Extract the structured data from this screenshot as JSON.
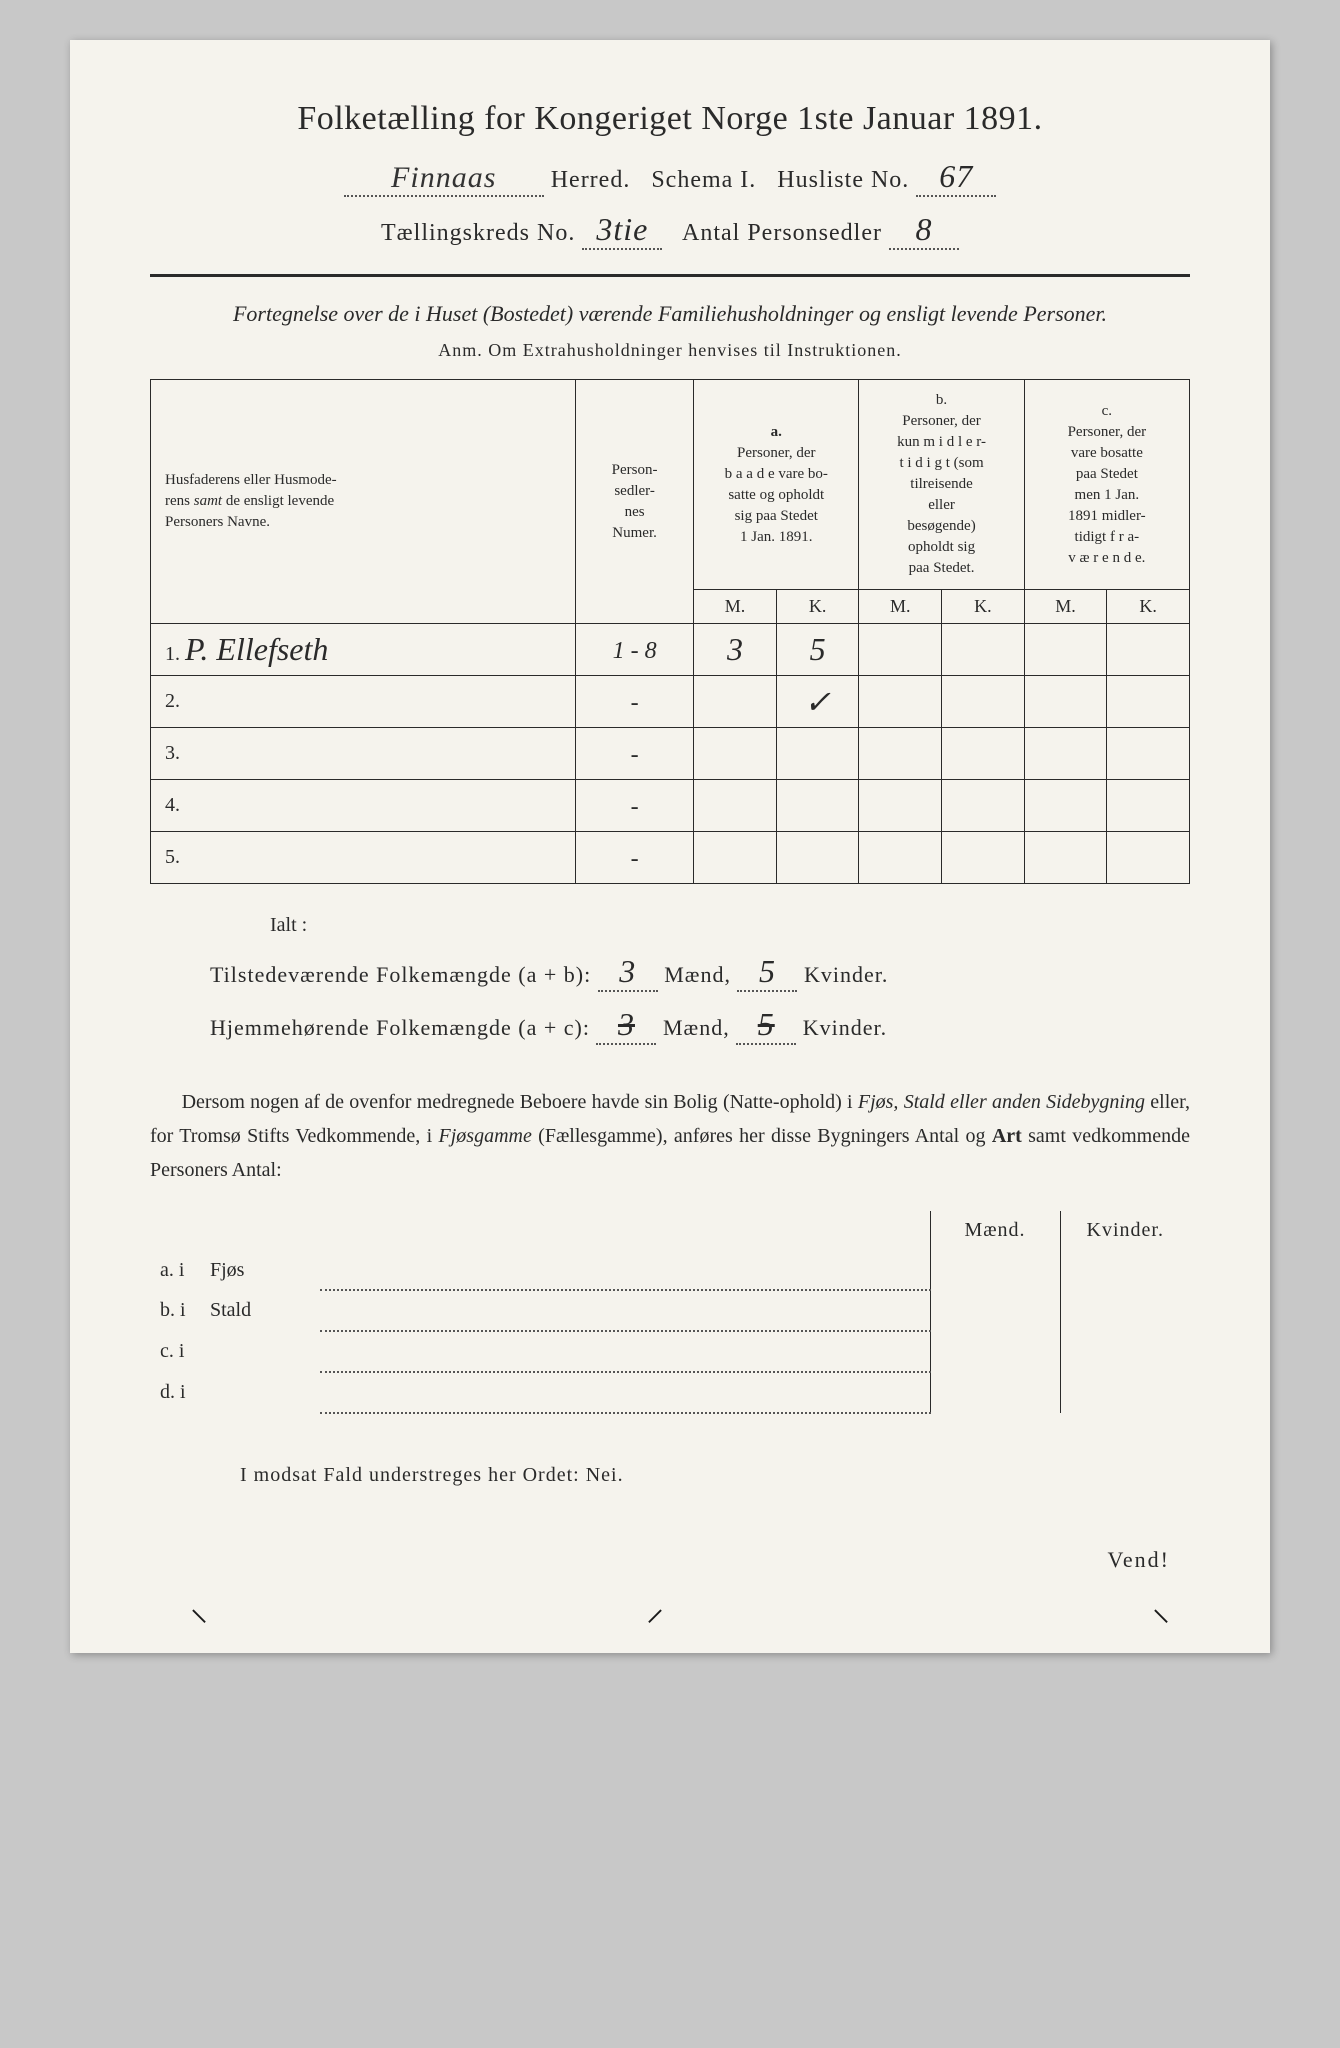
{
  "header": {
    "title": "Folketælling for Kongeriget Norge 1ste Januar 1891.",
    "herred_field": "Finnaas",
    "herred_label": "Herred.",
    "schema_label": "Schema I.",
    "husliste_label": "Husliste No.",
    "husliste_no": "67",
    "kreds_label": "Tællingskreds No.",
    "kreds_no": "3tie",
    "antal_label": "Antal Personsedler",
    "antal_no": "8"
  },
  "subheading": "Fortegnelse over de i Huset (Bostedet) værende Familiehusholdninger og ensligt levende Personer.",
  "anm": "Anm.  Om Extrahusholdninger henvises til Instruktionen.",
  "table": {
    "col_names": "Husfaderens eller Husmoderens samt de ensligt levende Personers Navne.",
    "col_numer": "Person-sedler-nes Numer.",
    "col_a": "a.\nPersoner, der baade vare bosatte og opholdt sig paa Stedet 1 Jan. 1891.",
    "col_b": "b.\nPersoner, der kun midler tidigt (som tilreisende eller besøgende) opholdt sig paa Stedet.",
    "col_c": "c.\nPersoner, der vare bosatte paa Stedet men 1 Jan. 1891 midler tidigt fra-værende.",
    "mk_m": "M.",
    "mk_k": "K.",
    "rows": [
      {
        "n": "1.",
        "name": "P. Ellefseth",
        "numer": "1 - 8",
        "am": "3",
        "ak": "5",
        "bm": "",
        "bk": "",
        "cm": "",
        "ck": ""
      },
      {
        "n": "2.",
        "name": "",
        "numer": "-",
        "am": "",
        "ak": "✓",
        "bm": "",
        "bk": "",
        "cm": "",
        "ck": ""
      },
      {
        "n": "3.",
        "name": "",
        "numer": "-",
        "am": "",
        "ak": "",
        "bm": "",
        "bk": "",
        "cm": "",
        "ck": ""
      },
      {
        "n": "4.",
        "name": "",
        "numer": "-",
        "am": "",
        "ak": "",
        "bm": "",
        "bk": "",
        "cm": "",
        "ck": ""
      },
      {
        "n": "5.",
        "name": "",
        "numer": "-",
        "am": "",
        "ak": "",
        "bm": "",
        "bk": "",
        "cm": "",
        "ck": ""
      }
    ]
  },
  "ialt": "Ialt :",
  "totals": {
    "line1_label": "Tilstedeværende Folkemængde (a + b):",
    "line1_m": "3",
    "line1_k": "5",
    "line2_label": "Hjemmehørende Folkemængde (a + c):",
    "line2_m": "3",
    "line2_k": "5",
    "maend": "Mænd,",
    "kvinder": "Kvinder."
  },
  "para": {
    "t1": "Dersom nogen af de ovenfor medregnede Beboere havde sin Bolig (Natte-ophold) i ",
    "t2": "Fjøs, Stald eller anden Sidebygning",
    "t3": " eller, for Tromsø Stifts Vedkommende, i ",
    "t4": "Fjøsgamme",
    "t5": " (Fællesgamme), anføres her disse Bygningers Antal og ",
    "t6": "Art",
    "t7": " samt vedkommende Personers Antal:"
  },
  "lower": {
    "head_m": "Mænd.",
    "head_k": "Kvinder.",
    "rows": [
      {
        "lbl": "a.  i",
        "cat": "Fjøs"
      },
      {
        "lbl": "b.  i",
        "cat": "Stald"
      },
      {
        "lbl": "c.  i",
        "cat": ""
      },
      {
        "lbl": "d.  i",
        "cat": ""
      }
    ]
  },
  "footer": "I modsat Fald understreges her Ordet: Nei.",
  "vend": "Vend!"
}
